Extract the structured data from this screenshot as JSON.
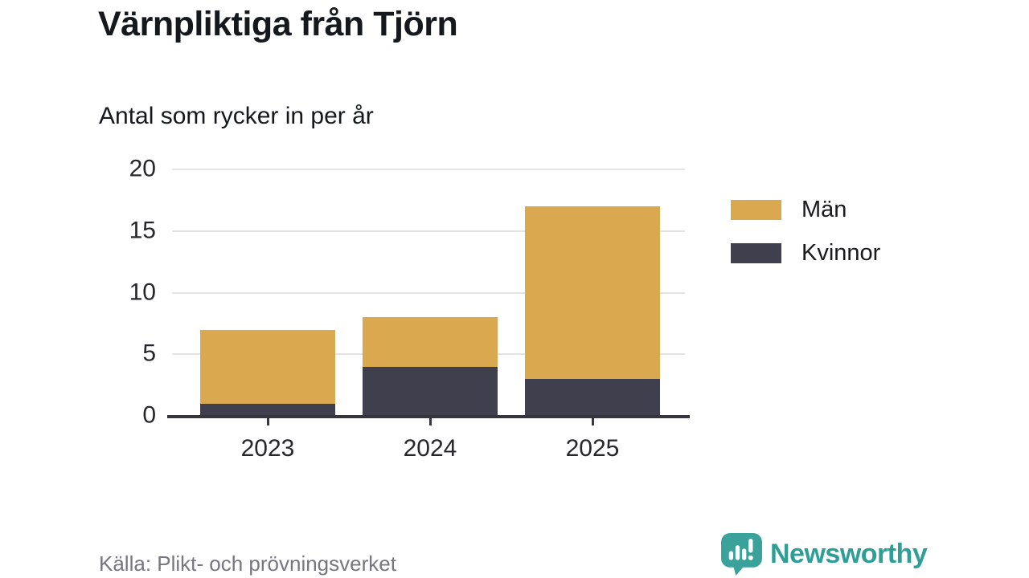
{
  "title": "Värnpliktiga från Tjörn",
  "subtitle": "Antal som rycker in per år",
  "source": "Källa: Plikt- och prövningsverket",
  "branding": {
    "name": "Newsworthy",
    "icon": "newsworthy-speech-bubble-chart-icon",
    "color": "#2e9e96",
    "icon_fill": "#3aa29a"
  },
  "colors": {
    "bar_men": "#d9a84f",
    "bar_women": "#3f3f4d",
    "axis": "#35353e",
    "gridline": "#e4e4e6",
    "text": "#15181c",
    "tick_text": "#26262b",
    "muted_text": "#76767e"
  },
  "chart_data": {
    "type": "bar",
    "stacked": true,
    "title": "Värnpliktiga från Tjörn",
    "subtitle": "Antal som rycker in per år",
    "xlabel": "",
    "ylabel": "Antal som rycker in per år",
    "categories": [
      "2023",
      "2024",
      "2025"
    ],
    "series": [
      {
        "name": "Män",
        "color": "#d9a84f",
        "values": [
          6,
          4,
          14
        ]
      },
      {
        "name": "Kvinnor",
        "color": "#3f3f4d",
        "values": [
          1,
          4,
          3
        ]
      }
    ],
    "stack_order_bottom_to_top": [
      "Kvinnor",
      "Män"
    ],
    "totals": [
      7,
      8,
      17
    ],
    "ylim": [
      0,
      20
    ],
    "yticks": [
      0,
      5,
      10,
      15,
      20
    ],
    "grid": true,
    "legend_position": "right"
  }
}
